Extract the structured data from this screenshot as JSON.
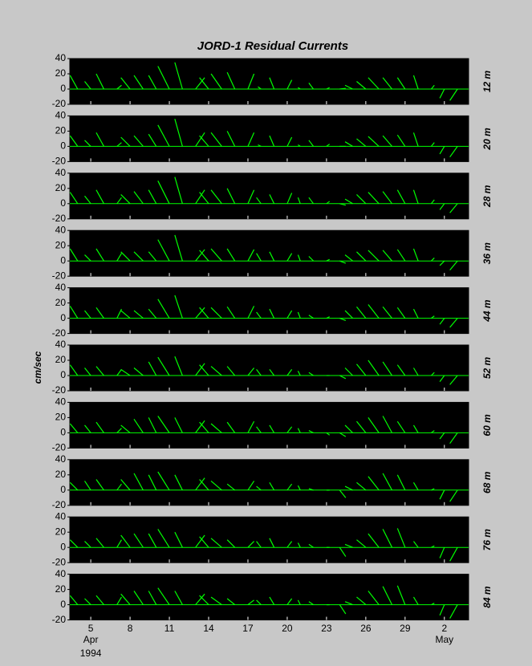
{
  "chart_data": {
    "type": "stick",
    "title": "JORD-1  Residual Currents",
    "y_label": "cm/sec",
    "month_labels": [
      {
        "value": 5,
        "label": "Apr"
      },
      {
        "value": 32,
        "label": "May"
      }
    ],
    "year_label": {
      "value": 5,
      "label": "1994"
    },
    "color": "#00ff00",
    "xlim": [
      3.4,
      33.85
    ],
    "xticks": [
      5,
      8,
      11,
      14,
      17,
      20,
      23,
      26,
      29,
      {
        "value": 32,
        "label": "2"
      }
    ],
    "ylim": [
      -20,
      40
    ],
    "yticks": [
      -20,
      0,
      20,
      40
    ],
    "x": [
      4,
      5,
      6,
      7,
      8,
      9,
      10,
      11,
      12,
      13,
      14,
      15,
      16,
      17,
      18,
      19,
      20,
      21,
      22,
      23,
      24,
      25,
      26,
      27,
      28,
      29,
      30,
      31,
      32,
      33
    ],
    "series": [
      {
        "name": "12 m",
        "v": [
          18,
          10,
          20,
          5,
          15,
          18,
          18,
          30,
          35,
          15,
          15,
          20,
          22,
          20,
          3,
          15,
          12,
          2,
          8,
          2,
          1,
          5,
          10,
          15,
          15,
          15,
          18,
          5,
          -12,
          -15
        ],
        "u": [
          -10,
          -8,
          -10,
          6,
          -12,
          -12,
          -10,
          -15,
          -10,
          12,
          -12,
          -14,
          -10,
          8,
          -4,
          -6,
          6,
          -3,
          -6,
          4,
          8,
          -10,
          -12,
          -14,
          -12,
          -10,
          -6,
          4,
          -6,
          -10
        ]
      },
      {
        "name": "20 m",
        "v": [
          14,
          8,
          18,
          5,
          12,
          14,
          16,
          28,
          36,
          18,
          14,
          18,
          20,
          18,
          2,
          14,
          12,
          2,
          8,
          3,
          0,
          6,
          10,
          13,
          14,
          15,
          18,
          5,
          -10,
          -14
        ],
        "u": [
          -10,
          -8,
          -10,
          6,
          -12,
          -12,
          -10,
          -15,
          -10,
          12,
          -12,
          -14,
          -10,
          8,
          -4,
          -6,
          6,
          -3,
          -6,
          4,
          8,
          -10,
          -12,
          -14,
          -12,
          -10,
          -6,
          4,
          -6,
          -10
        ]
      },
      {
        "name": "28 m",
        "v": [
          15,
          10,
          18,
          8,
          12,
          16,
          18,
          30,
          35,
          18,
          15,
          18,
          20,
          18,
          8,
          12,
          14,
          8,
          8,
          3,
          -2,
          6,
          12,
          15,
          16,
          18,
          18,
          5,
          -8,
          -12
        ],
        "u": [
          -10,
          -8,
          -10,
          6,
          -12,
          -12,
          -10,
          -15,
          -10,
          12,
          -12,
          -14,
          -10,
          8,
          -6,
          -6,
          6,
          -3,
          -6,
          4,
          8,
          -10,
          -12,
          -14,
          -12,
          -10,
          -6,
          4,
          -6,
          -10
        ]
      },
      {
        "name": "36 m",
        "v": [
          16,
          8,
          16,
          10,
          12,
          12,
          12,
          28,
          34,
          15,
          14,
          16,
          16,
          15,
          10,
          12,
          10,
          8,
          6,
          2,
          -3,
          8,
          12,
          14,
          14,
          15,
          16,
          4,
          -6,
          -12
        ],
        "u": [
          -10,
          -8,
          -10,
          6,
          -12,
          -12,
          -10,
          -15,
          -10,
          12,
          -12,
          -14,
          -10,
          8,
          -6,
          -6,
          6,
          -3,
          -6,
          4,
          8,
          -10,
          -12,
          -14,
          -12,
          -10,
          -6,
          4,
          -6,
          -10
        ]
      },
      {
        "name": "44 m",
        "v": [
          16,
          10,
          14,
          12,
          10,
          10,
          12,
          25,
          30,
          14,
          14,
          14,
          15,
          16,
          8,
          12,
          10,
          8,
          4,
          2,
          -3,
          10,
          15,
          18,
          15,
          14,
          12,
          3,
          -8,
          -12
        ],
        "u": [
          -10,
          -8,
          -10,
          6,
          -12,
          -12,
          -10,
          -15,
          -10,
          12,
          -12,
          -14,
          -10,
          8,
          -6,
          -6,
          6,
          -3,
          -6,
          4,
          8,
          -10,
          -12,
          -14,
          -12,
          -10,
          -6,
          4,
          -6,
          -10
        ]
      },
      {
        "name": "52 m",
        "v": [
          14,
          10,
          12,
          8,
          8,
          10,
          18,
          24,
          25,
          16,
          14,
          12,
          12,
          10,
          8,
          8,
          8,
          6,
          4,
          0,
          -4,
          10,
          15,
          20,
          18,
          14,
          10,
          4,
          -8,
          -12
        ],
        "u": [
          -10,
          -8,
          -10,
          6,
          -12,
          -12,
          -10,
          -15,
          -10,
          12,
          -12,
          -14,
          -10,
          8,
          -6,
          -6,
          6,
          -3,
          -6,
          4,
          8,
          -10,
          -12,
          -14,
          -12,
          -10,
          -6,
          4,
          -6,
          -10
        ]
      },
      {
        "name": "60 m",
        "v": [
          12,
          10,
          14,
          6,
          10,
          18,
          20,
          22,
          20,
          16,
          14,
          12,
          14,
          15,
          8,
          10,
          8,
          6,
          3,
          -3,
          -5,
          10,
          15,
          20,
          22,
          15,
          10,
          3,
          -8,
          -14
        ],
        "u": [
          -10,
          -8,
          -10,
          6,
          -12,
          -12,
          -10,
          -15,
          -10,
          12,
          -12,
          -14,
          -10,
          8,
          -6,
          -6,
          6,
          -3,
          -6,
          4,
          8,
          -10,
          -12,
          -14,
          -12,
          -10,
          -6,
          4,
          -6,
          -10
        ]
      },
      {
        "name": "68 m",
        "v": [
          10,
          12,
          14,
          8,
          14,
          22,
          20,
          24,
          20,
          16,
          14,
          12,
          8,
          12,
          5,
          10,
          8,
          6,
          2,
          0,
          -10,
          5,
          10,
          18,
          22,
          20,
          10,
          2,
          -12,
          -15
        ],
        "u": [
          -10,
          -8,
          -10,
          6,
          -12,
          -12,
          -10,
          -15,
          -10,
          12,
          -12,
          -14,
          -10,
          8,
          -6,
          -6,
          6,
          -3,
          -6,
          4,
          8,
          -10,
          -12,
          -14,
          -12,
          -10,
          -6,
          4,
          -6,
          -10
        ]
      },
      {
        "name": "76 m",
        "v": [
          10,
          8,
          12,
          10,
          16,
          18,
          18,
          24,
          20,
          16,
          14,
          12,
          10,
          8,
          8,
          12,
          8,
          6,
          4,
          0,
          -12,
          4,
          10,
          18,
          24,
          25,
          8,
          2,
          -14,
          -18
        ],
        "u": [
          -10,
          -8,
          -10,
          6,
          -12,
          -12,
          -10,
          -15,
          -10,
          12,
          -12,
          -14,
          -10,
          8,
          -6,
          -6,
          6,
          -3,
          -6,
          4,
          8,
          -10,
          -12,
          -14,
          -12,
          -10,
          -6,
          4,
          -6,
          -10
        ]
      },
      {
        "name": "84 m",
        "v": [
          12,
          8,
          12,
          10,
          14,
          18,
          18,
          22,
          18,
          14,
          12,
          10,
          8,
          6,
          6,
          10,
          8,
          6,
          4,
          0,
          -12,
          4,
          10,
          18,
          24,
          25,
          10,
          2,
          -14,
          -18
        ],
        "u": [
          -10,
          -8,
          -10,
          6,
          -12,
          -12,
          -10,
          -15,
          -10,
          12,
          -12,
          -14,
          -10,
          8,
          -6,
          -6,
          6,
          -3,
          -6,
          4,
          8,
          -10,
          -12,
          -14,
          -12,
          -10,
          -6,
          4,
          -6,
          -10
        ]
      }
    ]
  }
}
